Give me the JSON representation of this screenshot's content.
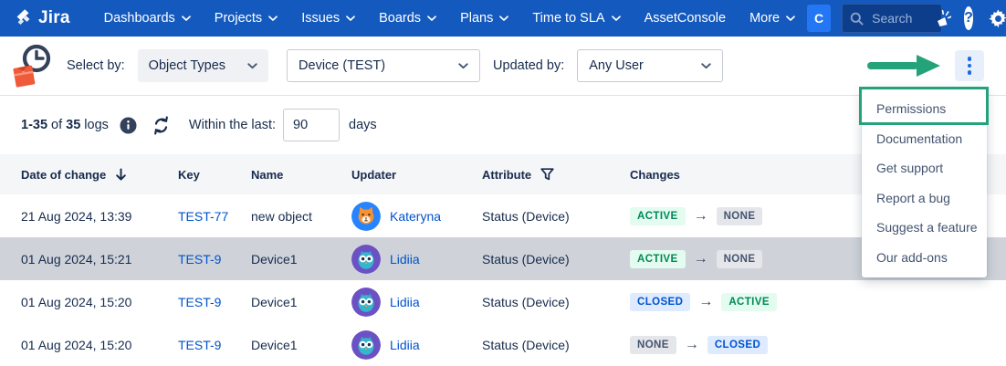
{
  "nav": {
    "brand": "Jira",
    "items": [
      {
        "label": "Dashboards",
        "caret": true
      },
      {
        "label": "Projects",
        "caret": true
      },
      {
        "label": "Issues",
        "caret": true
      },
      {
        "label": "Boards",
        "caret": true
      },
      {
        "label": "Plans",
        "caret": true
      },
      {
        "label": "Time to SLA",
        "caret": true
      },
      {
        "label": "AssetConsole",
        "caret": false
      },
      {
        "label": "More",
        "caret": true
      }
    ],
    "create_label": "C",
    "search_placeholder": "Search",
    "help_label": "?"
  },
  "filters": {
    "select_by_label": "Select by:",
    "mode_selected": "Object Types",
    "object_type_selected": "Device (TEST)",
    "updated_by_label": "Updated by:",
    "user_selected": "Any User"
  },
  "summary": {
    "range": "1-35",
    "of_label": "of",
    "total": "35",
    "unit": "logs",
    "within_label": "Within the last:",
    "within_value": "90",
    "days_label": "days"
  },
  "table": {
    "headers": [
      {
        "label": "Date of change",
        "icon": "sort-down-icon"
      },
      {
        "label": "Key",
        "icon": null
      },
      {
        "label": "Name",
        "icon": null
      },
      {
        "label": "Updater",
        "icon": null
      },
      {
        "label": "Attribute",
        "icon": "filter-icon"
      },
      {
        "label": "Changes",
        "icon": null
      }
    ],
    "rows": [
      {
        "date": "21 Aug 2024, 13:39",
        "key": "TEST-77",
        "name": "new object",
        "updater": "Kateryna",
        "avatar": "cat",
        "attribute": "Status (Device)",
        "from": "ACTIVE",
        "to": "NONE",
        "selected": false
      },
      {
        "date": "01 Aug 2024, 15:21",
        "key": "TEST-9",
        "name": "Device1",
        "updater": "Lidiia",
        "avatar": "owl",
        "attribute": "Status (Device)",
        "from": "ACTIVE",
        "to": "NONE",
        "selected": true
      },
      {
        "date": "01 Aug 2024, 15:20",
        "key": "TEST-9",
        "name": "Device1",
        "updater": "Lidiia",
        "avatar": "owl",
        "attribute": "Status (Device)",
        "from": "CLOSED",
        "to": "ACTIVE",
        "selected": false
      },
      {
        "date": "01 Aug 2024, 15:20",
        "key": "TEST-9",
        "name": "Device1",
        "updater": "Lidiia",
        "avatar": "owl",
        "attribute": "Status (Device)",
        "from": "NONE",
        "to": "CLOSED",
        "selected": false
      }
    ]
  },
  "menu": {
    "items": [
      "Permissions",
      "Documentation",
      "Get support",
      "Report a bug",
      "Suggest a feature",
      "Our add-ons"
    ],
    "highlighted": "Permissions"
  },
  "colors": {
    "nav_bg": "#1459BD",
    "link": "#0052CC",
    "annotation_green": "#24A37B",
    "selected_row_bg": "#CFD3D9",
    "badges": {
      "ACTIVE": {
        "bg": "#E3FCEF",
        "fg": "#00875A"
      },
      "NONE": {
        "bg": "#E4E6EA",
        "fg": "#44546F"
      },
      "CLOSED": {
        "bg": "#DEEBFF",
        "fg": "#0052CC"
      }
    }
  }
}
